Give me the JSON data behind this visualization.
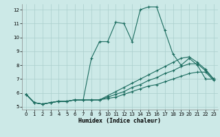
{
  "xlabel": "Humidex (Indice chaleur)",
  "xlim": [
    -0.5,
    23.5
  ],
  "ylim": [
    4.8,
    12.4
  ],
  "yticks": [
    5,
    6,
    7,
    8,
    9,
    10,
    11,
    12
  ],
  "xticks": [
    0,
    1,
    2,
    3,
    4,
    5,
    6,
    7,
    8,
    9,
    10,
    11,
    12,
    13,
    14,
    15,
    16,
    17,
    18,
    19,
    20,
    21,
    22,
    23
  ],
  "bg_color": "#cce9e7",
  "grid_color": "#aacfcc",
  "line_color": "#1a6b5e",
  "series": [
    [
      5.9,
      5.3,
      5.2,
      5.3,
      5.4,
      5.4,
      5.5,
      5.5,
      8.5,
      9.7,
      9.7,
      11.1,
      11.0,
      9.7,
      12.0,
      12.2,
      12.2,
      10.5,
      8.8,
      8.0,
      8.5,
      8.0,
      7.0,
      7.0
    ],
    [
      5.9,
      5.3,
      5.2,
      5.3,
      5.4,
      5.4,
      5.5,
      5.5,
      5.5,
      5.5,
      5.6,
      5.7,
      5.9,
      6.1,
      6.3,
      6.5,
      6.6,
      6.8,
      7.0,
      7.2,
      7.4,
      7.5,
      7.5,
      6.9
    ],
    [
      5.9,
      5.3,
      5.2,
      5.3,
      5.4,
      5.4,
      5.5,
      5.5,
      5.5,
      5.5,
      5.7,
      5.9,
      6.1,
      6.4,
      6.6,
      6.9,
      7.1,
      7.4,
      7.6,
      7.9,
      8.1,
      8.1,
      7.6,
      7.0
    ],
    [
      5.9,
      5.3,
      5.2,
      5.3,
      5.4,
      5.4,
      5.5,
      5.5,
      5.5,
      5.5,
      5.8,
      6.1,
      6.4,
      6.7,
      7.0,
      7.3,
      7.6,
      7.9,
      8.2,
      8.5,
      8.6,
      8.2,
      7.7,
      7.0
    ]
  ]
}
